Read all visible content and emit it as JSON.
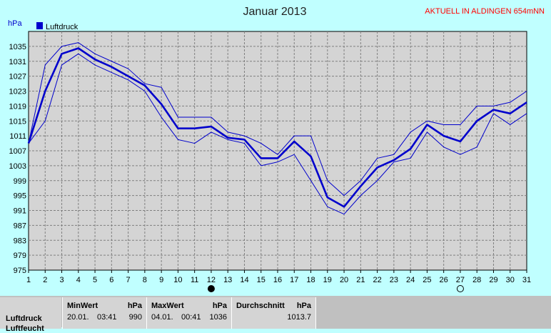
{
  "header": {
    "title": "Januar 2013",
    "station": "AKTUELL IN ALDINGEN 654mNN",
    "y_unit": "hPa",
    "legend_label": "Luftdruck"
  },
  "colors": {
    "background": "#c0ffff",
    "plot_background": "#d4d4d4",
    "series_line": "#0000cc",
    "station_text": "#ff0000"
  },
  "moon_phases": [
    {
      "day": 12,
      "icon": "new-moon-icon"
    },
    {
      "day": 27,
      "icon": "full-moon-icon"
    }
  ],
  "chart_data": {
    "type": "line",
    "title": "Januar 2013",
    "ylabel": "hPa",
    "xlabel": "",
    "ylim": [
      975,
      1039
    ],
    "xlim": [
      1,
      31
    ],
    "yticks": [
      975,
      979,
      983,
      987,
      991,
      995,
      999,
      1003,
      1007,
      1011,
      1015,
      1019,
      1023,
      1027,
      1031,
      1035
    ],
    "x": [
      1,
      2,
      3,
      4,
      5,
      6,
      7,
      8,
      9,
      10,
      11,
      12,
      13,
      14,
      15,
      16,
      17,
      18,
      19,
      20,
      21,
      22,
      23,
      24,
      25,
      26,
      27,
      28,
      29,
      30,
      31
    ],
    "grid": true,
    "legend": "top-left",
    "series": [
      {
        "name": "Luftdruck",
        "role": "mean",
        "values": [
          1009,
          1023,
          1033,
          1034.5,
          1031.5,
          1029.5,
          1027,
          1024.5,
          1019.5,
          1013,
          1013,
          1013.5,
          1010.5,
          1010,
          1005,
          1005,
          1009.5,
          1005.5,
          994.5,
          992,
          997.5,
          1002.5,
          1004.5,
          1007.5,
          1014,
          1011,
          1009.5,
          1015,
          1018,
          1017,
          1020
        ]
      },
      {
        "role": "max",
        "values": [
          1009,
          1030,
          1035,
          1036,
          1033,
          1031,
          1029,
          1025,
          1024,
          1016,
          1016,
          1016,
          1012,
          1011,
          1009,
          1006,
          1011,
          1011,
          999,
          995,
          999,
          1005,
          1006,
          1012,
          1015,
          1014,
          1014,
          1019,
          1019,
          1020,
          1023
        ]
      },
      {
        "role": "min",
        "values": [
          1009,
          1015,
          1030,
          1033,
          1030,
          1028,
          1026,
          1023,
          1016,
          1010,
          1009,
          1012,
          1010,
          1009,
          1003,
          1004,
          1006,
          999,
          992,
          990,
          995,
          999,
          1004,
          1005,
          1012,
          1008,
          1006,
          1008,
          1017,
          1014,
          1017
        ]
      }
    ]
  },
  "stats": {
    "row_label": "Luftdruck",
    "row_label_2": "Luftfeucht",
    "min": {
      "header": "MinWert",
      "unit": "hPa",
      "date": "20.01.",
      "time": "03:41",
      "value": "990"
    },
    "max": {
      "header": "MaxWert",
      "unit": "hPa",
      "date": "04.01.",
      "time": "00:41",
      "value": "1036"
    },
    "avg": {
      "header": "Durchschnitt",
      "unit": "hPa",
      "value": "1013.7"
    }
  }
}
